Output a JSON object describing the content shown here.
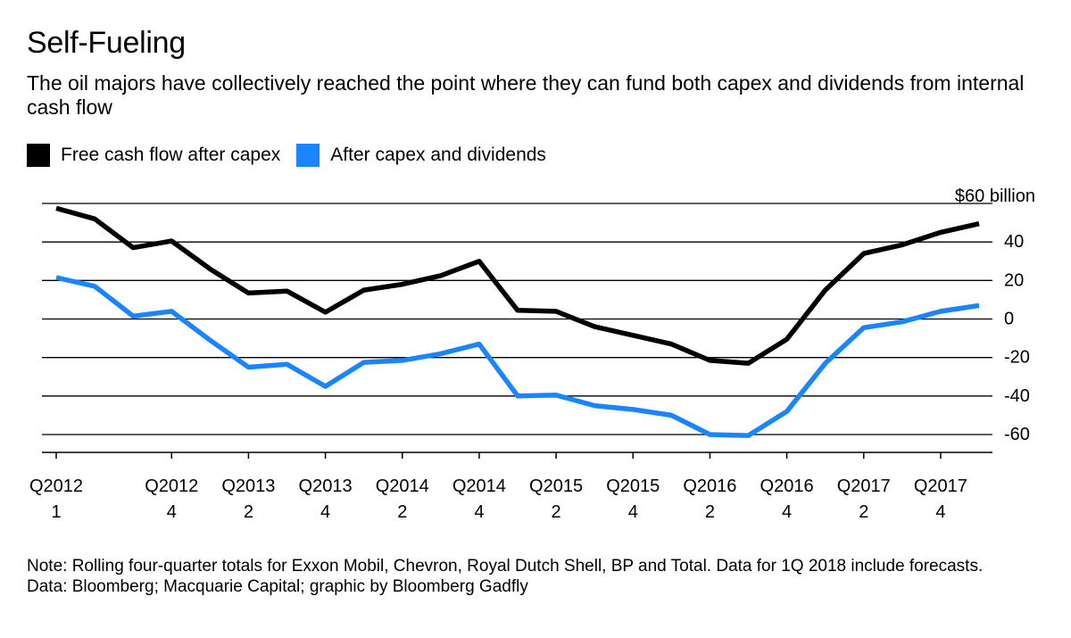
{
  "title": "Self-Fueling",
  "subtitle": "The oil majors have collectively reached the point where they can fund both capex and dividends from internal cash flow",
  "legend": [
    {
      "label": "Free cash flow after capex",
      "color": "#000000"
    },
    {
      "label": "After capex and dividends",
      "color": "#1a85ff"
    }
  ],
  "footer": {
    "note": "Note: Rolling four-quarter totals for Exxon Mobil, Chevron, Royal Dutch Shell, BP and Total. Data for 1Q 2018 include forecasts.",
    "source": "Data: Bloomberg; Macquarie Capital; graphic by Bloomberg Gadfly"
  },
  "chart_data": {
    "type": "line",
    "title": "Self-Fueling",
    "subtitle": "The oil majors have collectively reached the point where they can fund both capex and dividends from internal cash flow",
    "x": [
      "Q1 2012",
      "Q2 2012",
      "Q3 2012",
      "Q4 2012",
      "Q1 2013",
      "Q2 2013",
      "Q3 2013",
      "Q4 2013",
      "Q1 2014",
      "Q2 2014",
      "Q3 2014",
      "Q4 2014",
      "Q1 2015",
      "Q2 2015",
      "Q3 2015",
      "Q4 2015",
      "Q1 2016",
      "Q2 2016",
      "Q3 2016",
      "Q4 2016",
      "Q1 2017",
      "Q2 2017",
      "Q3 2017",
      "Q4 2017",
      "Q1 2018"
    ],
    "x_tick_labels": [
      {
        "index": 0,
        "line1": "Q2012",
        "line2": "1"
      },
      {
        "index": 3,
        "line1": "Q2012",
        "line2": "4"
      },
      {
        "index": 5,
        "line1": "Q2013",
        "line2": "2"
      },
      {
        "index": 7,
        "line1": "Q2013",
        "line2": "4"
      },
      {
        "index": 9,
        "line1": "Q2014",
        "line2": "2"
      },
      {
        "index": 11,
        "line1": "Q2014",
        "line2": "4"
      },
      {
        "index": 13,
        "line1": "Q2015",
        "line2": "2"
      },
      {
        "index": 15,
        "line1": "Q2015",
        "line2": "4"
      },
      {
        "index": 17,
        "line1": "Q2016",
        "line2": "2"
      },
      {
        "index": 19,
        "line1": "Q2016",
        "line2": "4"
      },
      {
        "index": 21,
        "line1": "Q2017",
        "line2": "2"
      },
      {
        "index": 23,
        "line1": "Q2017",
        "line2": "4"
      }
    ],
    "series": [
      {
        "name": "Free cash flow after capex",
        "color": "#000000",
        "values": [
          57.5,
          52,
          37,
          40.5,
          26,
          13.5,
          14.5,
          3.5,
          15,
          18,
          22.5,
          30,
          4.5,
          4,
          -4,
          -8.5,
          -13,
          -21.5,
          -23,
          -10.5,
          15,
          34,
          38.5,
          45,
          49.5
        ]
      },
      {
        "name": "After capex and dividends",
        "color": "#1a85ff",
        "values": [
          21.5,
          17,
          1.5,
          4,
          -11,
          -25,
          -23.5,
          -35,
          -22.5,
          -21.5,
          -18,
          -13,
          -40,
          -39.5,
          -45,
          -47,
          -50,
          -60,
          -60.5,
          -48,
          -23,
          -4.5,
          -1.5,
          4,
          7
        ]
      }
    ],
    "y_ticks": [
      {
        "value": 60,
        "label": "$60 billion"
      },
      {
        "value": 40,
        "label": "40"
      },
      {
        "value": 20,
        "label": "20"
      },
      {
        "value": 0,
        "label": "0"
      },
      {
        "value": -20,
        "label": "-20"
      },
      {
        "value": -40,
        "label": "-40"
      },
      {
        "value": -60,
        "label": "-60"
      }
    ],
    "ylim": [
      -69,
      62
    ],
    "grid": true,
    "legend_position": "top-left"
  }
}
